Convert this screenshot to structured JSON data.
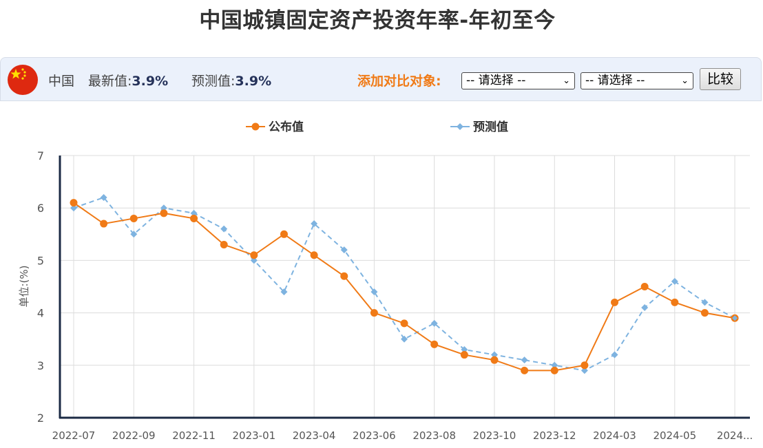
{
  "page": {
    "title": "中国城镇固定资产投资年率-年初至今"
  },
  "info": {
    "country": "中国",
    "latest_label": "最新值:",
    "latest_value": "3.9%",
    "forecast_label": "预测值:",
    "forecast_value": "3.9%",
    "compare_label": "添加对比对象:",
    "select1": "-- 请选择 --",
    "select2": "-- 请选择 --",
    "compare_button": "比较",
    "flag_icon": "china-flag-icon"
  },
  "colors": {
    "published": "#f07a16",
    "forecast": "#7eb3e0",
    "compare_label": "#f07a16",
    "info_bar_bg": "#ebf1fb"
  },
  "chart_data": {
    "type": "line",
    "ylabel": "单位:(%)",
    "ylim": [
      2,
      7
    ],
    "yticks": [
      2,
      3,
      4,
      5,
      6,
      7
    ],
    "grid": true,
    "legend_position": "top-center",
    "xtick_labels": [
      "2022-07",
      "2022-09",
      "2022-11",
      "2023-01",
      "2023-04",
      "2023-06",
      "2023-08",
      "2023-10",
      "2023-12",
      "2024-03",
      "2024-05",
      "2024..."
    ],
    "x": [
      "2022-07",
      "2022-08",
      "2022-09",
      "2022-10",
      "2022-11",
      "2022-12",
      "2023-01",
      "2023-02",
      "2023-04",
      "2023-05",
      "2023-06",
      "2023-07",
      "2023-08",
      "2023-09",
      "2023-10",
      "2023-11",
      "2023-12",
      "2024-01",
      "2024-03",
      "2024-04",
      "2024-05",
      "2024-06",
      "2024-07"
    ],
    "series": [
      {
        "name": "公布值",
        "style": "solid-circle",
        "values": [
          6.1,
          5.7,
          5.8,
          5.9,
          5.8,
          5.3,
          5.1,
          5.5,
          5.1,
          4.7,
          4.0,
          3.8,
          3.4,
          3.2,
          3.1,
          2.9,
          2.9,
          3.0,
          4.2,
          4.5,
          4.2,
          4.0,
          3.9
        ]
      },
      {
        "name": "预测值",
        "style": "dashed-diamond",
        "values": [
          6.0,
          6.2,
          5.5,
          6.0,
          5.9,
          5.6,
          5.0,
          4.4,
          5.7,
          5.2,
          4.4,
          3.5,
          3.8,
          3.3,
          3.2,
          3.1,
          3.0,
          2.9,
          3.2,
          4.1,
          4.6,
          4.2,
          3.9
        ]
      }
    ]
  }
}
